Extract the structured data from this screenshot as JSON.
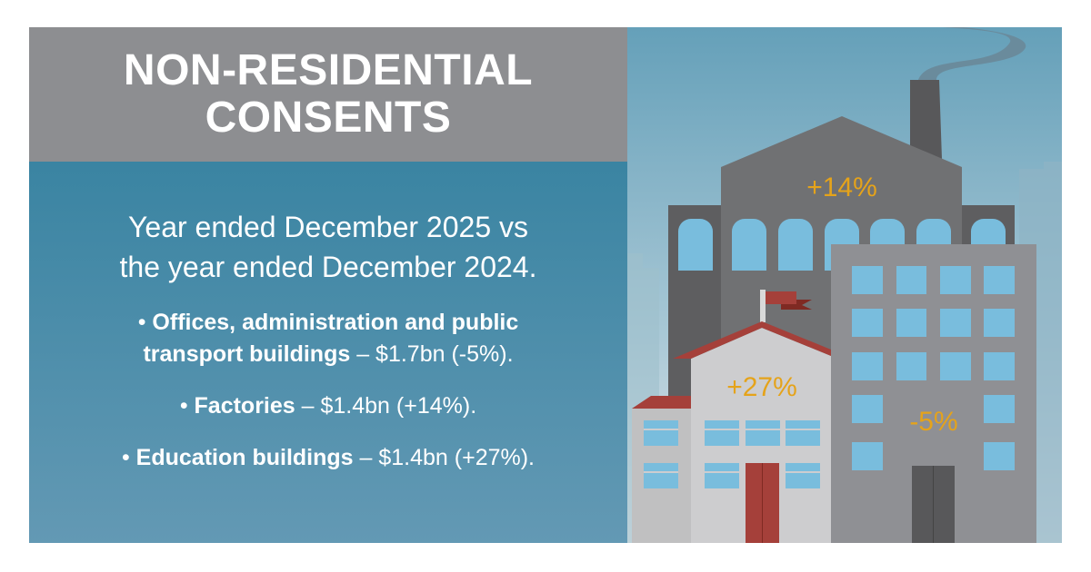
{
  "title": {
    "line1": "NON-RESIDENTIAL",
    "line2": "CONSENTS"
  },
  "intro": {
    "line1": "Year ended December 2025 vs",
    "line2": "the year ended December 2024."
  },
  "bullets": [
    {
      "label_line1": "Offices, administration and public",
      "label_line2": "transport buildings",
      "value": " – $1.7bn (-5%)."
    },
    {
      "label": "Factories",
      "value": " – $1.4bn (+14%)."
    },
    {
      "label": "Education buildings",
      "value": " – $1.4bn (+27%)."
    }
  ],
  "illustration": {
    "factory_change": "+14%",
    "education_change": "+27%",
    "office_change": "-5%",
    "accent_color": "#e5a31a"
  }
}
